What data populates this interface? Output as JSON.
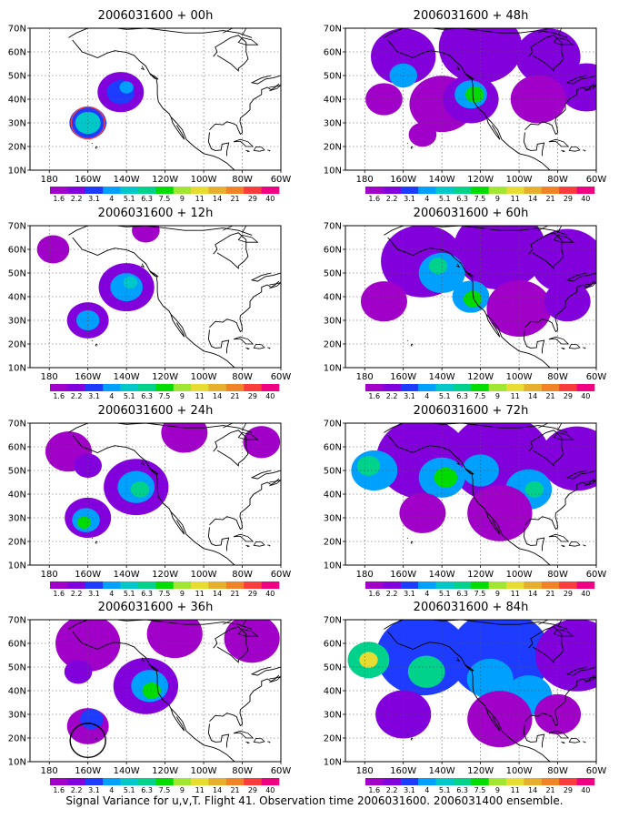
{
  "x_ticks": [
    "180",
    "160W",
    "140W",
    "120W",
    "100W",
    "80W",
    "60W"
  ],
  "y_ticks": [
    "10N",
    "20N",
    "30N",
    "40N",
    "50N",
    "60N",
    "70N"
  ],
  "colorbar": {
    "labels": [
      "1.6",
      "2.2",
      "3.1",
      "4",
      "5.1",
      "6.3",
      "7.5",
      "9",
      "11",
      "14",
      "21",
      "29",
      "40"
    ],
    "colors": [
      "#a000c8",
      "#8200dc",
      "#1e3cff",
      "#00a0ff",
      "#00c8c8",
      "#00d28c",
      "#00dc00",
      "#a0e632",
      "#e6dc32",
      "#e6af2d",
      "#f08228",
      "#fa3c3c",
      "#f00082"
    ]
  },
  "panels": [
    {
      "title": "2006031600 + 00h",
      "blobs": [
        {
          "lon": -160,
          "lat": 30,
          "r": 8,
          "level": 2
        },
        {
          "lon": -160,
          "lat": 30,
          "r": 5.5,
          "level": 4
        },
        {
          "lon": -143,
          "lat": 43,
          "r": 10,
          "level": 1
        },
        {
          "lon": -143,
          "lat": 43,
          "r": 6,
          "level": 2
        },
        {
          "lon": -140,
          "lat": 45,
          "r": 3,
          "level": 3
        }
      ],
      "ring": {
        "lon": -160,
        "lat": 30,
        "r": 7.5,
        "color": "#fa3c3c"
      }
    },
    {
      "title": "2006031600 + 48h",
      "blobs": [
        {
          "lon": -160,
          "lat": 58,
          "r": 14,
          "level": 1
        },
        {
          "lon": -120,
          "lat": 62,
          "r": 18,
          "level": 1
        },
        {
          "lon": -85,
          "lat": 58,
          "r": 14,
          "level": 1
        },
        {
          "lon": -65,
          "lat": 45,
          "r": 12,
          "level": 1
        },
        {
          "lon": -140,
          "lat": 38,
          "r": 14,
          "level": 0
        },
        {
          "lon": -125,
          "lat": 40,
          "r": 12,
          "level": 1
        },
        {
          "lon": -125,
          "lat": 42,
          "r": 7,
          "level": 3
        },
        {
          "lon": -123,
          "lat": 42,
          "r": 4,
          "level": 6
        },
        {
          "lon": -160,
          "lat": 50,
          "r": 6,
          "level": 3
        },
        {
          "lon": -150,
          "lat": 25,
          "r": 6,
          "level": 0
        },
        {
          "lon": -90,
          "lat": 40,
          "r": 12,
          "level": 0
        },
        {
          "lon": -170,
          "lat": 40,
          "r": 8,
          "level": 0
        }
      ]
    },
    {
      "title": "2006031600 + 12h",
      "blobs": [
        {
          "lon": -160,
          "lat": 30,
          "r": 9,
          "level": 1
        },
        {
          "lon": -160,
          "lat": 30,
          "r": 5,
          "level": 3
        },
        {
          "lon": -140,
          "lat": 44,
          "r": 12,
          "level": 1
        },
        {
          "lon": -140,
          "lat": 44,
          "r": 7,
          "level": 3
        },
        {
          "lon": -138,
          "lat": 46,
          "r": 3,
          "level": 4
        },
        {
          "lon": -178,
          "lat": 60,
          "r": 7,
          "level": 0
        },
        {
          "lon": -130,
          "lat": 68,
          "r": 6,
          "level": 0
        }
      ]
    },
    {
      "title": "2006031600 + 60h",
      "blobs": [
        {
          "lon": -150,
          "lat": 55,
          "r": 18,
          "level": 1
        },
        {
          "lon": -110,
          "lat": 60,
          "r": 20,
          "level": 1
        },
        {
          "lon": -75,
          "lat": 55,
          "r": 16,
          "level": 1
        },
        {
          "lon": -140,
          "lat": 50,
          "r": 10,
          "level": 3
        },
        {
          "lon": -142,
          "lat": 53,
          "r": 4,
          "level": 5
        },
        {
          "lon": -125,
          "lat": 40,
          "r": 8,
          "level": 3
        },
        {
          "lon": -124,
          "lat": 39,
          "r": 4,
          "level": 6
        },
        {
          "lon": -170,
          "lat": 38,
          "r": 10,
          "level": 0
        },
        {
          "lon": -100,
          "lat": 35,
          "r": 14,
          "level": 0
        },
        {
          "lon": -75,
          "lat": 38,
          "r": 10,
          "level": 1
        }
      ]
    },
    {
      "title": "2006031600 + 24h",
      "blobs": [
        {
          "lon": -160,
          "lat": 30,
          "r": 10,
          "level": 1
        },
        {
          "lon": -161,
          "lat": 29,
          "r": 6,
          "level": 3
        },
        {
          "lon": -162,
          "lat": 28,
          "r": 3,
          "level": 6
        },
        {
          "lon": -135,
          "lat": 43,
          "r": 14,
          "level": 1
        },
        {
          "lon": -135,
          "lat": 43,
          "r": 8,
          "level": 3
        },
        {
          "lon": -133,
          "lat": 42,
          "r": 4,
          "level": 5
        },
        {
          "lon": -170,
          "lat": 58,
          "r": 10,
          "level": 0
        },
        {
          "lon": -160,
          "lat": 52,
          "r": 6,
          "level": 1
        },
        {
          "lon": -110,
          "lat": 66,
          "r": 10,
          "level": 0
        },
        {
          "lon": -70,
          "lat": 62,
          "r": 8,
          "level": 0
        }
      ]
    },
    {
      "title": "2006031600 + 72h",
      "blobs": [
        {
          "lon": -150,
          "lat": 55,
          "r": 20,
          "level": 1
        },
        {
          "lon": -110,
          "lat": 55,
          "r": 22,
          "level": 1
        },
        {
          "lon": -70,
          "lat": 55,
          "r": 16,
          "level": 1
        },
        {
          "lon": -175,
          "lat": 50,
          "r": 10,
          "level": 3
        },
        {
          "lon": -178,
          "lat": 52,
          "r": 5,
          "level": 5
        },
        {
          "lon": -140,
          "lat": 47,
          "r": 10,
          "level": 3
        },
        {
          "lon": -138,
          "lat": 47,
          "r": 5,
          "level": 6
        },
        {
          "lon": -120,
          "lat": 50,
          "r": 8,
          "level": 3
        },
        {
          "lon": -95,
          "lat": 42,
          "r": 10,
          "level": 3
        },
        {
          "lon": -92,
          "lat": 42,
          "r": 4,
          "level": 5
        },
        {
          "lon": -150,
          "lat": 32,
          "r": 10,
          "level": 0
        },
        {
          "lon": -110,
          "lat": 32,
          "r": 14,
          "level": 0
        }
      ]
    },
    {
      "title": "2006031600 + 36h",
      "blobs": [
        {
          "lon": -160,
          "lat": 25,
          "r": 9,
          "level": 0
        },
        {
          "lon": -158,
          "lat": 28,
          "r": 5,
          "level": 2
        },
        {
          "lon": -130,
          "lat": 42,
          "r": 14,
          "level": 1
        },
        {
          "lon": -128,
          "lat": 42,
          "r": 8,
          "level": 3
        },
        {
          "lon": -127,
          "lat": 40,
          "r": 4,
          "level": 6
        },
        {
          "lon": -160,
          "lat": 60,
          "r": 14,
          "level": 0
        },
        {
          "lon": -115,
          "lat": 64,
          "r": 12,
          "level": 0
        },
        {
          "lon": -75,
          "lat": 62,
          "r": 12,
          "level": 0
        },
        {
          "lon": -165,
          "lat": 48,
          "r": 6,
          "level": 1
        }
      ],
      "ring": {
        "lon": -160,
        "lat": 19,
        "r": 8,
        "color": "#000000"
      }
    },
    {
      "title": "2006031600 + 84h",
      "blobs": [
        {
          "lon": -150,
          "lat": 55,
          "r": 20,
          "level": 2
        },
        {
          "lon": -110,
          "lat": 55,
          "r": 22,
          "level": 2
        },
        {
          "lon": -70,
          "lat": 55,
          "r": 18,
          "level": 1
        },
        {
          "lon": -178,
          "lat": 53,
          "r": 9,
          "level": 5
        },
        {
          "lon": -178,
          "lat": 53,
          "r": 4,
          "level": 8
        },
        {
          "lon": -148,
          "lat": 48,
          "r": 8,
          "level": 5
        },
        {
          "lon": -115,
          "lat": 45,
          "r": 10,
          "level": 3
        },
        {
          "lon": -95,
          "lat": 38,
          "r": 10,
          "level": 3
        },
        {
          "lon": -160,
          "lat": 30,
          "r": 12,
          "level": 1
        },
        {
          "lon": -110,
          "lat": 28,
          "r": 14,
          "level": 0
        },
        {
          "lon": -80,
          "lat": 30,
          "r": 10,
          "level": 0
        }
      ]
    }
  ],
  "caption": "Signal Variance for u,v,T. Flight 41. Observation time 2006031600. 2006031400 ensemble."
}
